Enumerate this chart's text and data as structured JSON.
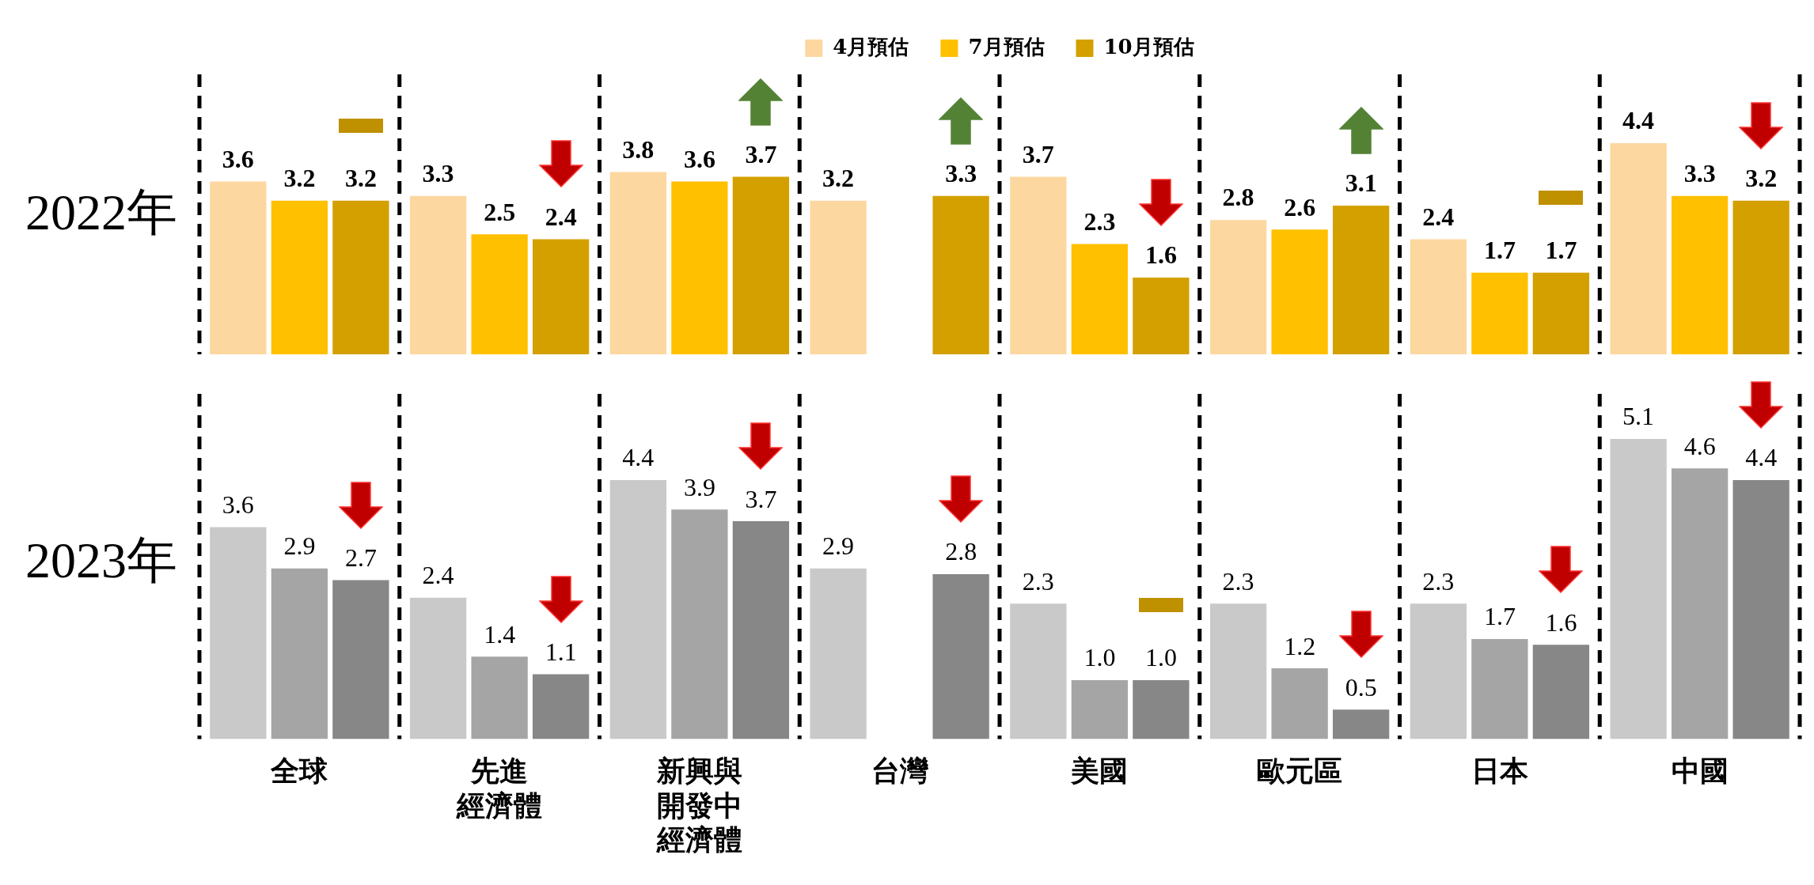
{
  "chart_data": [
    {
      "type": "bar",
      "title": "2022年",
      "categories": [
        "全球",
        "先進經濟體",
        "新興與開發中經濟體",
        "台灣",
        "美國",
        "歐元區",
        "日本",
        "中國"
      ],
      "series": [
        {
          "name": "4月預估",
          "color": "#fdd7a0",
          "values": [
            3.6,
            3.3,
            3.8,
            3.2,
            3.7,
            2.8,
            2.4,
            4.4
          ]
        },
        {
          "name": "7月預估",
          "color": "#ffc000",
          "values": [
            3.2,
            2.5,
            3.6,
            null,
            2.3,
            2.6,
            1.7,
            3.3
          ]
        },
        {
          "name": "10月預估",
          "color": "#d4a000",
          "values": [
            3.2,
            2.4,
            3.7,
            3.3,
            1.6,
            3.1,
            1.7,
            3.2
          ]
        }
      ],
      "data_labels": true,
      "legend": "top",
      "tick_labels": false,
      "grid": false
    },
    {
      "type": "bar",
      "title": "2023年",
      "categories": [
        "全球",
        "先進經濟體",
        "新興與開發中經濟體",
        "台灣",
        "美國",
        "歐元區",
        "日本",
        "中國"
      ],
      "series": [
        {
          "color": "#c9c9c9",
          "values": [
            3.6,
            2.4,
            4.4,
            2.9,
            2.3,
            2.3,
            2.3,
            5.1
          ],
          "value_labels": [
            "3.6",
            "2.4",
            "4.4",
            "2.9",
            "2.3",
            "2.3",
            "2.3",
            "5.1"
          ]
        },
        {
          "color": "#a5a5a5",
          "values": [
            2.9,
            1.4,
            3.9,
            null,
            1.0,
            1.2,
            1.7,
            4.6
          ],
          "value_labels": [
            "2.9",
            "1.4",
            "3.9",
            null,
            "1.0",
            "1.2",
            "1.7",
            "4.6"
          ]
        },
        {
          "color": "#878787",
          "values": [
            2.7,
            1.1,
            3.7,
            2.8,
            1.0,
            0.5,
            1.6,
            4.4
          ],
          "value_labels": [
            "2.7",
            "1.1",
            "3.7",
            "2.8",
            "1.0",
            "0.5",
            "1.6",
            "4.4"
          ]
        }
      ],
      "tick_labels": "x",
      "grid": false
    }
  ]
}
